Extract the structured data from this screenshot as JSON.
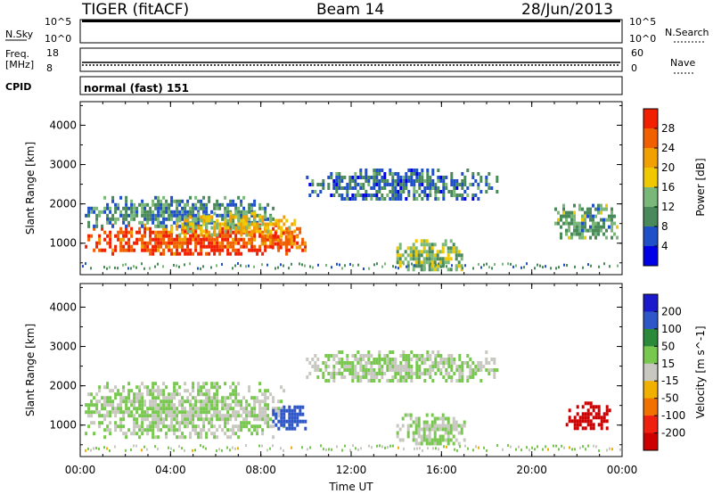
{
  "header": {
    "station": "TIGER (fitACF)",
    "beam": "Beam 14",
    "date": "28/Jun/2013"
  },
  "status": {
    "nsky_label": "N.Sky",
    "nsky_ticks": [
      "10^5",
      "10^0"
    ],
    "nsearch_label": "N.Search",
    "nsearch_ticks": [
      "10^5",
      "10^0"
    ],
    "freq_label": "Freq.",
    "freq_unit": "[MHz]",
    "freq_ticks": [
      "18",
      "8"
    ],
    "nave_label": "Nave",
    "nave_ticks": [
      "60",
      "0"
    ],
    "cpid_label": "CPID",
    "cpid_value": "normal (fast) 151"
  },
  "colors": {
    "power_scale": [
      "#0000e6",
      "#2050c8",
      "#4a8a5a",
      "#7ab87a",
      "#f0c800",
      "#f0a000",
      "#f06000",
      "#f02000"
    ],
    "velocity_scale": [
      "#1a1acc",
      "#2e56c8",
      "#2a8a3a",
      "#78c850",
      "#c8c8c0",
      "#f0b000",
      "#f07000",
      "#f02010",
      "#cc0000"
    ]
  },
  "chart_data": [
    {
      "type": "heatmap",
      "name": "power",
      "ylabel": "Slant Range [km]",
      "yticks": [
        "1000",
        "2000",
        "3000",
        "4000"
      ],
      "ylim": [
        200,
        4600
      ],
      "x_ticks": [
        "00:00",
        "04:00",
        "08:00",
        "12:00",
        "16:00",
        "20:00",
        "00:00"
      ],
      "xlim_hours": [
        0,
        24
      ],
      "colorbar": {
        "label": "Power [dB]",
        "ticks": [
          "4",
          "8",
          "12",
          "16",
          "20",
          "24",
          "28"
        ]
      },
      "regions": [
        {
          "t0": 0.2,
          "t1": 10.0,
          "r0": 700,
          "r1": 1500,
          "level": 28
        },
        {
          "t0": 0.2,
          "t1": 8.5,
          "r0": 1400,
          "r1": 2200,
          "level": 10
        },
        {
          "t0": 4.0,
          "t1": 9.5,
          "r0": 1200,
          "r1": 1800,
          "level": 18
        },
        {
          "t0": 8.0,
          "t1": 10.0,
          "r0": 900,
          "r1": 1300,
          "level": 26
        },
        {
          "t0": 10.0,
          "t1": 18.5,
          "r0": 2100,
          "r1": 2900,
          "level": 8
        },
        {
          "t0": 14.0,
          "t1": 17.0,
          "r0": 300,
          "r1": 1100,
          "level": 14
        },
        {
          "t0": 21.0,
          "t1": 23.8,
          "r0": 1100,
          "r1": 2000,
          "level": 12
        }
      ]
    },
    {
      "type": "heatmap",
      "name": "velocity",
      "ylabel": "Slant Range [km]",
      "yticks": [
        "1000",
        "2000",
        "3000",
        "4000"
      ],
      "ylim": [
        200,
        4600
      ],
      "x_ticks": [
        "00:00",
        "04:00",
        "08:00",
        "12:00",
        "16:00",
        "20:00",
        "00:00"
      ],
      "xlim_hours": [
        0,
        24
      ],
      "xlabel": "Time UT",
      "colorbar": {
        "label": "Velocity [m s^-1]",
        "ticks": [
          "200",
          "100",
          "50",
          "15",
          "-15",
          "-50",
          "-100",
          "-200"
        ]
      },
      "regions": [
        {
          "t0": 0.2,
          "t1": 9.0,
          "r0": 700,
          "r1": 2100,
          "level": 0
        },
        {
          "t0": 8.5,
          "t1": 10.0,
          "r0": 900,
          "r1": 1500,
          "level": 120
        },
        {
          "t0": 10.0,
          "t1": 18.5,
          "r0": 2100,
          "r1": 2900,
          "level": 0
        },
        {
          "t0": 14.0,
          "t1": 17.0,
          "r0": 500,
          "r1": 1300,
          "level": 0
        },
        {
          "t0": 21.5,
          "t1": 23.5,
          "r0": 900,
          "r1": 1600,
          "level": -180
        }
      ]
    }
  ]
}
